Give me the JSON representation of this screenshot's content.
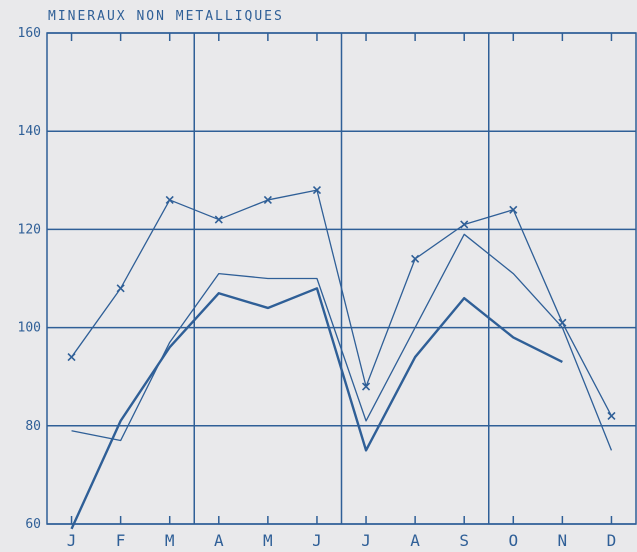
{
  "chart_data": {
    "type": "line",
    "title": "MINERAUX NON METALLIQUES",
    "categories": [
      "J",
      "F",
      "M",
      "A",
      "M",
      "J",
      "J",
      "A",
      "S",
      "O",
      "N",
      "D"
    ],
    "ylim": [
      60,
      160
    ],
    "yticks": [
      60,
      80,
      100,
      120,
      140,
      160
    ],
    "grid": true,
    "legend": "none",
    "series": [
      {
        "marker": "x",
        "values": [
          94,
          108,
          126,
          122,
          126,
          128,
          88,
          114,
          121,
          124,
          101,
          82
        ],
        "color": "#2f5f97"
      },
      {
        "marker": "none",
        "values": [
          79,
          77,
          97,
          111,
          110,
          110,
          81,
          100,
          119,
          111,
          100,
          75
        ],
        "color": "#2f5f97"
      },
      {
        "marker": "none",
        "values": [
          59,
          81,
          96,
          107,
          104,
          108,
          75,
          94,
          106,
          98,
          93,
          null
        ],
        "color": "#2f5f97"
      }
    ]
  }
}
